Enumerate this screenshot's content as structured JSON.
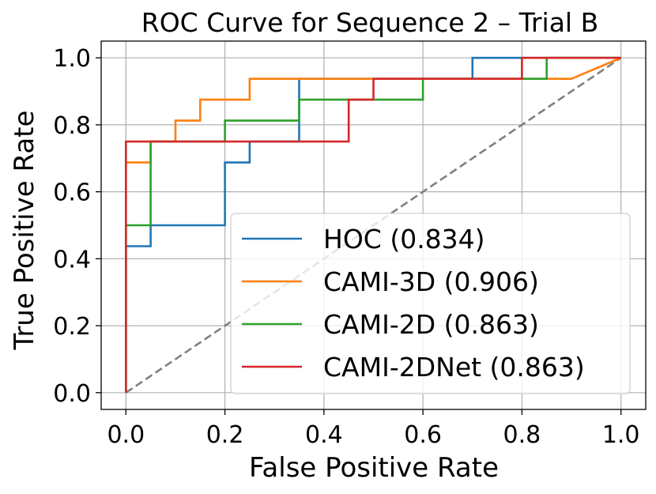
{
  "chart_data": {
    "type": "line",
    "title": "ROC Curve for Sequence 2 – Trial B",
    "xlabel": "False Positive Rate",
    "ylabel": "True Positive Rate",
    "xlim": [
      -0.05,
      1.05
    ],
    "ylim": [
      -0.05,
      1.05
    ],
    "x_ticks": [
      0.0,
      0.2,
      0.4,
      0.6,
      0.8,
      1.0
    ],
    "y_ticks": [
      0.0,
      0.2,
      0.4,
      0.6,
      0.8,
      1.0
    ],
    "x_tick_labels": [
      "0.0",
      "0.2",
      "0.4",
      "0.6",
      "0.8",
      "1.0"
    ],
    "y_tick_labels": [
      "0.0",
      "0.2",
      "0.4",
      "0.6",
      "0.8",
      "1.0"
    ],
    "grid": true,
    "legend_position": "lower-right",
    "diagonal": {
      "x": [
        0,
        1
      ],
      "y": [
        0,
        1
      ],
      "color": "#808080",
      "style": "dashed"
    },
    "series": [
      {
        "name": "HOC (0.834)",
        "color": "#1f77b4",
        "x": [
          0,
          0,
          0.05,
          0.05,
          0.2,
          0.2,
          0.25,
          0.25,
          0.35,
          0.35,
          0.7,
          0.7,
          1.0
        ],
        "y": [
          0,
          0.4375,
          0.4375,
          0.5,
          0.5,
          0.6875,
          0.6875,
          0.75,
          0.75,
          0.9375,
          0.9375,
          1.0,
          1.0
        ]
      },
      {
        "name": "CAMI-3D (0.906)",
        "color": "#ff7f0e",
        "x": [
          0,
          0,
          0.05,
          0.05,
          0.1,
          0.1,
          0.15,
          0.15,
          0.25,
          0.25,
          0.9,
          1.0
        ],
        "y": [
          0,
          0.6875,
          0.6875,
          0.75,
          0.75,
          0.8125,
          0.8125,
          0.875,
          0.875,
          0.9375,
          0.9375,
          1.0
        ]
      },
      {
        "name": "CAMI-2D (0.863)",
        "color": "#2ca02c",
        "x": [
          0,
          0,
          0.05,
          0.05,
          0.2,
          0.2,
          0.35,
          0.35,
          0.6,
          0.6,
          0.85,
          0.85,
          1.0
        ],
        "y": [
          0,
          0.5,
          0.5,
          0.75,
          0.75,
          0.8125,
          0.8125,
          0.875,
          0.875,
          0.9375,
          0.9375,
          1.0,
          1.0
        ]
      },
      {
        "name": "CAMI-2DNet (0.863)",
        "color": "#d62728",
        "x": [
          0,
          0,
          0.45,
          0.45,
          0.5,
          0.5,
          0.8,
          0.8,
          1.0
        ],
        "y": [
          0,
          0.75,
          0.75,
          0.875,
          0.875,
          0.9375,
          0.9375,
          1.0,
          1.0
        ]
      }
    ]
  }
}
